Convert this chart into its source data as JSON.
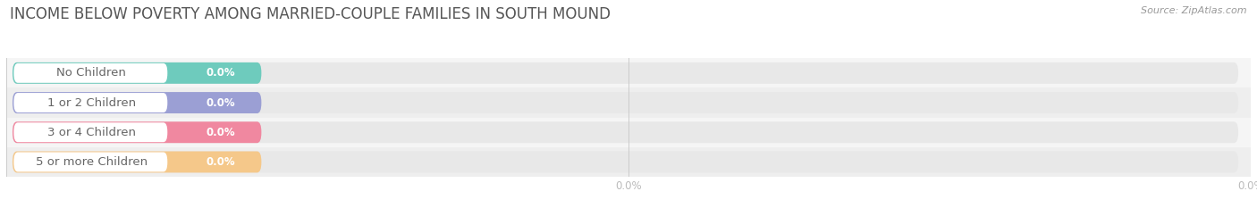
{
  "title": "INCOME BELOW POVERTY AMONG MARRIED-COUPLE FAMILIES IN SOUTH MOUND",
  "source_text": "Source: ZipAtlas.com",
  "categories": [
    "No Children",
    "1 or 2 Children",
    "3 or 4 Children",
    "5 or more Children"
  ],
  "values": [
    0.0,
    0.0,
    0.0,
    0.0
  ],
  "bar_colors": [
    "#6ecbbd",
    "#9b9fd4",
    "#f088a0",
    "#f5c88a"
  ],
  "row_bg_colors": [
    "#f5f5f5",
    "#eeeeee"
  ],
  "background_color": "#ffffff",
  "title_color": "#555555",
  "label_color": "#666666",
  "value_color": "#ffffff",
  "axis_label_color": "#bbbbbb",
  "source_color": "#999999",
  "title_fontsize": 12,
  "label_fontsize": 9.5,
  "value_fontsize": 8.5,
  "axis_tick_fontsize": 8.5
}
